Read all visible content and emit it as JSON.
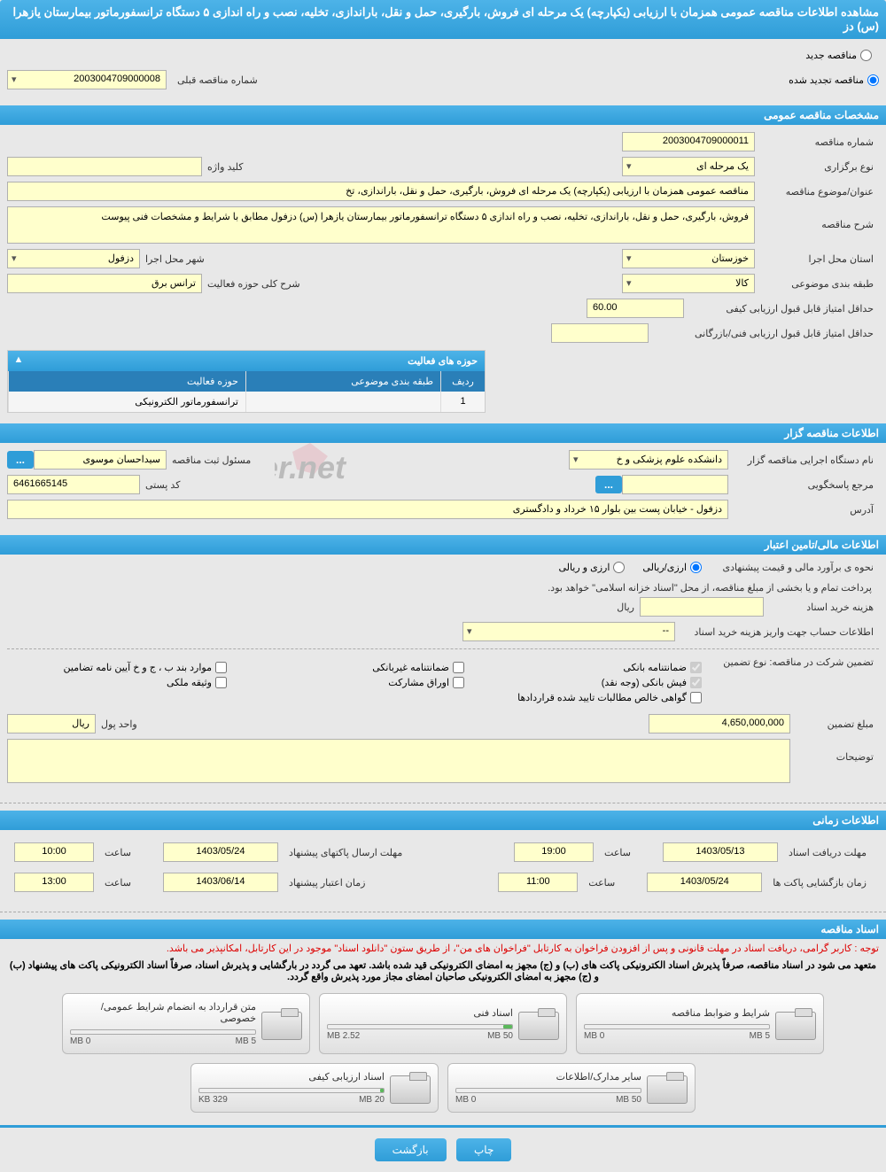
{
  "header": {
    "title": "مشاهده اطلاعات مناقصه عمومی همزمان با ارزیابی (یکپارچه) یک مرحله ای فروش، بارگیری، حمل و نقل، باراندازی، تخلیه، نصب و راه اندازی ۵ دستگاه ترانسفورماتور بیمارستان یازهرا (س) دز"
  },
  "top_options": {
    "new_tender": "مناقصه جدید",
    "renewed_tender": "مناقصه تجدید شده",
    "prev_number_label": "شماره مناقصه قبلی",
    "prev_number": "2003004709000008"
  },
  "sections": {
    "general_spec": "مشخصات مناقصه عمومی",
    "activity_areas": "حوزه های فعالیت",
    "organizer_info": "اطلاعات مناقصه گزار",
    "financial_info": "اطلاعات مالی/تامین اعتبار",
    "time_info": "اطلاعات زمانی",
    "docs": "اسناد مناقصه"
  },
  "general": {
    "tender_number_label": "شماره مناقصه",
    "tender_number": "2003004709000011",
    "holding_type_label": "نوع برگزاری",
    "holding_type": "یک مرحله ای",
    "keyword_label": "کلید واژه",
    "keyword": "",
    "subject_label": "عنوان/موضوع مناقصه",
    "subject": "مناقصه عمومی همزمان با ارزیابی (یکپارچه) یک مرحله ای فروش، بارگیری، حمل و نقل، باراندازی، تخ",
    "desc_label": "شرح مناقصه",
    "desc": "فروش، بارگیری، حمل و نقل، باراندازی، تخلیه، نصب و راه اندازی ۵ دستگاه ترانسفورماتور بیمارستان یازهرا (س) دزفول مطابق با شرایط و مشخصات فنی پیوست",
    "province_label": "استان محل اجرا",
    "province": "خوزستان",
    "city_label": "شهر محل اجرا",
    "city": "دزفول",
    "category_label": "طبقه بندی موضوعی",
    "category": "کالا",
    "activity_desc_label": "شرح کلی حوزه فعالیت",
    "activity_desc": "ترانس برق",
    "min_quality_score_label": "حداقل امتیاز قابل قبول ارزیابی کیفی",
    "min_quality_score": "60.00",
    "min_tech_score_label": "حداقل امتیاز قابل قبول ارزیابی فنی/بازرگانی",
    "min_tech_score": ""
  },
  "activity_table": {
    "col_idx": "ردیف",
    "col_subject": "طبقه بندی موضوعی",
    "col_domain": "حوزه فعالیت",
    "rows": [
      {
        "idx": "1",
        "subject": "",
        "domain": "ترانسفورماتور الکترونیکی"
      }
    ]
  },
  "organizer": {
    "org_label": "نام دستگاه اجرایی مناقصه گزار",
    "org": "دانشکده علوم پزشکی و خ",
    "registrar_label": "مسئول ثبت مناقصه",
    "registrar": "سیداحسان موسوی",
    "responder_label": "مرجع پاسخگویی",
    "responder": "",
    "postal_label": "کد پستی",
    "postal": "6461665145",
    "address_label": "آدرس",
    "address": "دزفول - خیابان پست بین بلوار ۱۵ خرداد و دادگستری"
  },
  "financial": {
    "estimate_label": "نحوه ی برآورد مالی و قیمت پیشنهادی",
    "opt_rial_fx": "ارزی/ریالی",
    "opt_rial": "ارزی و ریالی",
    "payment_note": "پرداخت تمام و یا بخشی از مبلغ مناقصه، از محل \"اسناد خزانه اسلامی\" خواهد بود.",
    "buy_cost_label": "هزینه خرید اسناد",
    "buy_cost": "",
    "buy_cost_unit": "ریال",
    "account_label": "اطلاعات حساب جهت واریز هزینه خرید اسناد",
    "account": "--",
    "guarantee_type_label": "تضمین شرکت در مناقصه:   نوع تضمین",
    "g_bank_guarantee": "ضمانتنامه بانکی",
    "g_nonbank": "ضمانتنامه غیربانکی",
    "g_bond": "موارد بند ب ، ج و خ آیین نامه تضامین",
    "g_bank_receipt": "فیش بانکی (وجه نقد)",
    "g_securities": "اوراق مشارکت",
    "g_property": "وثیقه ملکی",
    "g_certificate": "گواهی خالص مطالبات تایید شده قراردادها",
    "amount_label": "مبلغ تضمین",
    "amount": "4,650,000,000",
    "currency_label": "واحد پول",
    "currency": "ریال",
    "notes_label": "توضیحات",
    "notes": ""
  },
  "time": {
    "receive_deadline_label": "مهلت دریافت اسناد",
    "receive_deadline": "1403/05/13",
    "receive_time_label": "ساعت",
    "receive_time": "19:00",
    "send_deadline_label": "مهلت ارسال پاکتهای پیشنهاد",
    "send_deadline": "1403/05/24",
    "send_time": "10:00",
    "open_label": "زمان بازگشایی پاکت ها",
    "open_date": "1403/05/24",
    "open_time": "11:00",
    "validity_label": "زمان اعتبار پیشنهاد",
    "validity_date": "1403/06/14",
    "validity_time": "13:00"
  },
  "docs": {
    "note1": "توجه : کاربر گرامی، دریافت اسناد در مهلت قانونی و پس از افزودن فراخوان به کارتابل \"فراخوان های من\"، از طریق ستون \"دانلود اسناد\" موجود در این کارتابل، امکانپذیر می باشد.",
    "note2": "متعهد می شود در اسناد مناقصه، صرفاً پذیرش اسناد الکترونیکی پاکت های (ب) و (ج) مجهز به امضای الکترونیکی قید شده باشد. تعهد می گردد در بارگشایی و پذیرش اسناد، صرفاً اسناد الکترونیکی پاکت های پیشنهاد (ب) و (ج) مجهز به امضای الکترونیکی صاحبان امضای مجاز مورد پذیرش واقع گردد.",
    "items": [
      {
        "title": "شرایط و ضوابط مناقصه",
        "max": "5 MB",
        "used": "0 MB",
        "pct": 0
      },
      {
        "title": "اسناد فنی",
        "max": "50 MB",
        "used": "2.52 MB",
        "pct": 5
      },
      {
        "title": "متن قرارداد به انضمام شرایط عمومی/خصوصی",
        "max": "5 MB",
        "used": "0 MB",
        "pct": 0
      },
      {
        "title": "سایر مدارک/اطلاعات",
        "max": "50 MB",
        "used": "0 MB",
        "pct": 0
      },
      {
        "title": "اسناد ارزیابی کیفی",
        "max": "20 MB",
        "used": "329 KB",
        "pct": 2
      }
    ]
  },
  "actions": {
    "print": "چاپ",
    "back": "بازگشت"
  }
}
